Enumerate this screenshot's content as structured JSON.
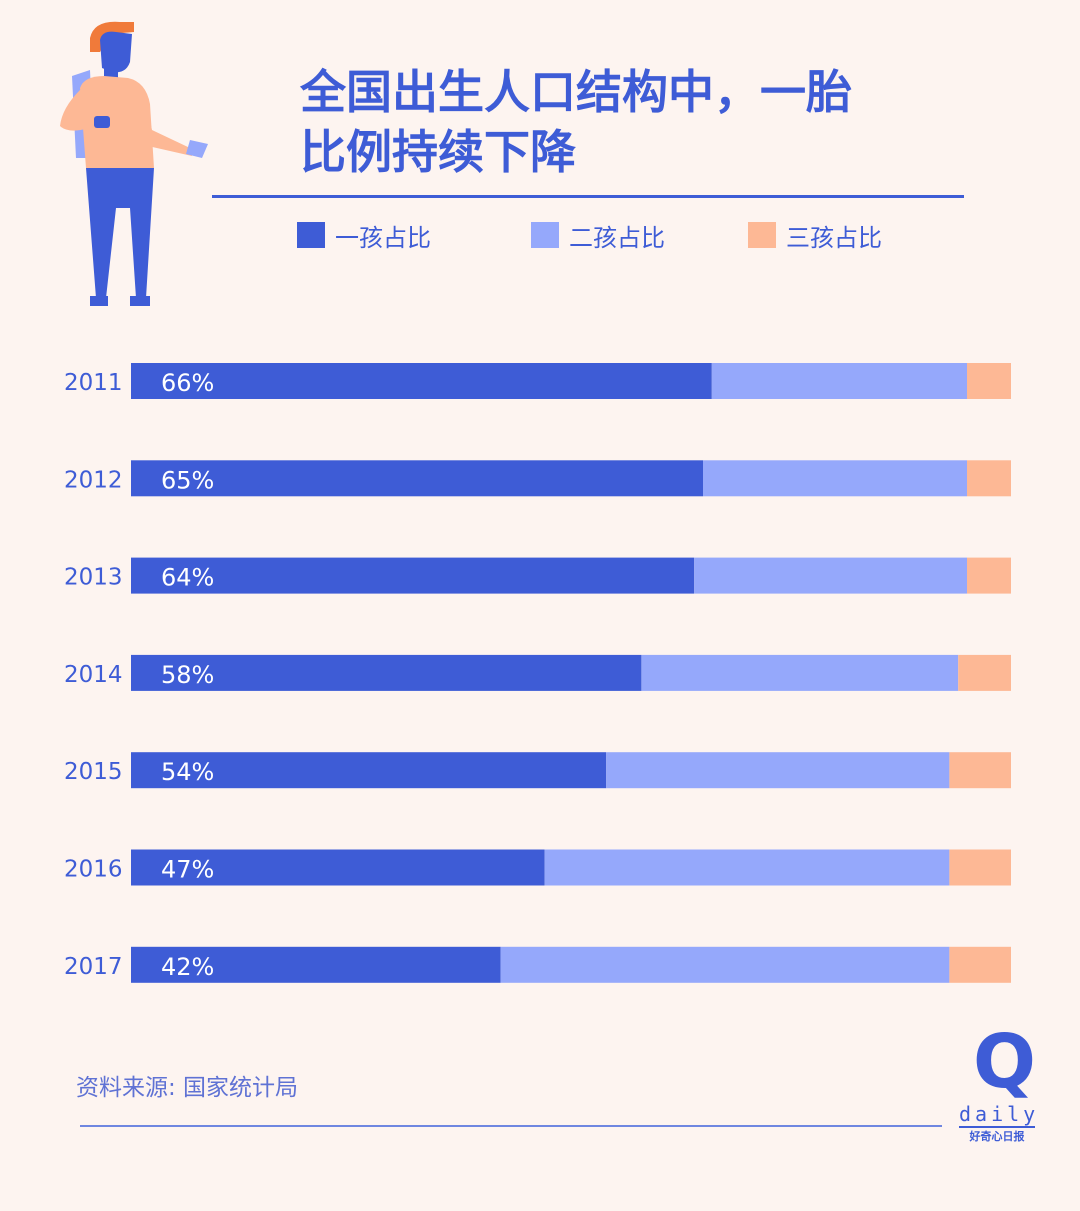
{
  "title_line1": "全国出生人口结构中，一胎",
  "title_line2": "比例持续下降",
  "source": "资料来源: 国家统计局",
  "logo": {
    "mark": "Q",
    "word": "daily",
    "tagline": "好奇心日报"
  },
  "colors": {
    "background": "#fdf4f0",
    "first_child": "#3e5cd6",
    "second_child": "#95a8fb",
    "third_child": "#fdb895",
    "text": "#3e5cd6"
  },
  "chart_data": {
    "type": "bar",
    "orientation": "horizontal",
    "stacked": true,
    "percent_stacked": true,
    "categories": [
      "2011",
      "2012",
      "2013",
      "2014",
      "2015",
      "2016",
      "2017"
    ],
    "series": [
      {
        "name": "一孩占比",
        "values": [
          66,
          65,
          64,
          58,
          54,
          47,
          42
        ],
        "color": "#3e5cd6",
        "labels": [
          "66%",
          "65%",
          "64%",
          "58%",
          "54%",
          "47%",
          "42%"
        ]
      },
      {
        "name": "二孩占比",
        "values": [
          29,
          30,
          31,
          36,
          39,
          46,
          51
        ],
        "color": "#95a8fb"
      },
      {
        "name": "三孩占比",
        "values": [
          5,
          5,
          5,
          6,
          7,
          7,
          7
        ],
        "color": "#fdb895"
      }
    ],
    "xlim": [
      0,
      100
    ],
    "legend_position": "top"
  }
}
